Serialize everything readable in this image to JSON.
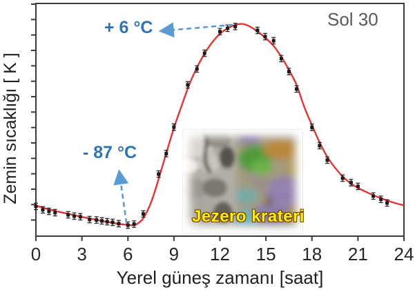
{
  "inset": {
    "caption": "Jezero krateri"
  },
  "colors": {
    "curve": "#e8322e",
    "marker": "#1a1a1a",
    "annotation_text": "#2e74b5",
    "arrow": "#5b9bd5",
    "title": "#595959",
    "axis": "#3a3a3a",
    "tick_label": "#262626",
    "inset_caption": "#ffee00"
  },
  "chart_data": {
    "type": "line",
    "title": "Sol 30",
    "xlabel": "Yerel güneş zamanı [saat]",
    "ylabel": "Zemin sıcaklığı  [ K ]",
    "x_unit": "hours, local solar time",
    "y_unit": "K",
    "xlim": [
      0,
      24
    ],
    "xticks": [
      0,
      3,
      6,
      9,
      12,
      15,
      18,
      21,
      24
    ],
    "ylim": [
      182,
      290
    ],
    "yticks_unlabeled_count": 15,
    "grid": false,
    "legend": "none",
    "annotations": {
      "max": {
        "label": "+ 6 °C",
        "value_c": 6,
        "value_k": 279,
        "at_hour": 13.4,
        "arrow": {
          "from": [
            12.83,
            280.1
          ],
          "to": [
            8.15,
            277.2
          ]
        }
      },
      "min": {
        "label": "- 87 °C",
        "value_c": -87,
        "value_k": 186,
        "at_hour": 5.9,
        "arrow": {
          "from": [
            5.91,
            188.0
          ],
          "to": [
            5.43,
            212.0
          ]
        }
      }
    },
    "series": [
      {
        "name": "measurements",
        "style": "square markers with error bars",
        "error_k": 1.5,
        "points": [
          [
            0.0,
            195.8
          ],
          [
            0.45,
            194.2
          ],
          [
            0.85,
            193.5
          ],
          [
            1.25,
            192.9
          ],
          [
            2.1,
            191.9
          ],
          [
            2.5,
            191.3
          ],
          [
            2.9,
            191.0
          ],
          [
            3.5,
            189.7
          ],
          [
            3.95,
            189.5
          ],
          [
            4.3,
            189.1
          ],
          [
            4.65,
            188.7
          ],
          [
            5.0,
            188.4
          ],
          [
            5.4,
            187.8
          ],
          [
            6.0,
            187.1
          ],
          [
            6.4,
            187.6
          ],
          [
            7.0,
            192.3
          ],
          [
            8.0,
            210.8
          ],
          [
            8.5,
            220.3
          ],
          [
            9.0,
            232.6
          ],
          [
            9.9,
            252.2
          ],
          [
            10.5,
            259.6
          ],
          [
            11.0,
            266.9
          ],
          [
            12.0,
            276.9
          ],
          [
            12.5,
            278.5
          ],
          [
            13.0,
            279.3
          ],
          [
            14.45,
            277.5
          ],
          [
            14.95,
            274.6
          ],
          [
            15.5,
            272.7
          ],
          [
            16.0,
            264.4
          ],
          [
            16.5,
            258.4
          ],
          [
            17.0,
            250.3
          ],
          [
            18.0,
            232.5
          ],
          [
            18.5,
            224.0
          ],
          [
            19.0,
            217.3
          ],
          [
            20.0,
            208.9
          ],
          [
            20.55,
            206.8
          ],
          [
            21.0,
            205.1
          ],
          [
            22.0,
            200.6
          ],
          [
            22.5,
            199.1
          ],
          [
            22.9,
            197.4
          ]
        ]
      },
      {
        "name": "model-fit",
        "style": "smooth red line",
        "points": [
          [
            0,
            196.2
          ],
          [
            0.5,
            195.1
          ],
          [
            1,
            194.1
          ],
          [
            1.5,
            193.3
          ],
          [
            2,
            192.5
          ],
          [
            2.5,
            191.7
          ],
          [
            3,
            190.9
          ],
          [
            3.5,
            190.2
          ],
          [
            4,
            189.5
          ],
          [
            4.5,
            188.8
          ],
          [
            5,
            188.2
          ],
          [
            5.5,
            187.6
          ],
          [
            6,
            187.2
          ],
          [
            6.3,
            187.1
          ],
          [
            6.6,
            187.7
          ],
          [
            7,
            190.3
          ],
          [
            7.5,
            197.5
          ],
          [
            8,
            208.5
          ],
          [
            8.5,
            220.5
          ],
          [
            9,
            232.2
          ],
          [
            9.5,
            242.5
          ],
          [
            10,
            252.3
          ],
          [
            10.5,
            260.2
          ],
          [
            11,
            266.8
          ],
          [
            11.5,
            272.0
          ],
          [
            12,
            275.9
          ],
          [
            12.5,
            278.5
          ],
          [
            13,
            280.0
          ],
          [
            13.4,
            280.5
          ],
          [
            13.8,
            279.8
          ],
          [
            14.2,
            278.2
          ],
          [
            14.6,
            276.2
          ],
          [
            15,
            273.8
          ],
          [
            15.5,
            270.3
          ],
          [
            16,
            265.3
          ],
          [
            16.5,
            259.2
          ],
          [
            17,
            252.2
          ],
          [
            17.5,
            242.0
          ],
          [
            18,
            233.5
          ],
          [
            18.5,
            225.5
          ],
          [
            19,
            218.8
          ],
          [
            19.5,
            213.8
          ],
          [
            20,
            209.7
          ],
          [
            20.5,
            206.6
          ],
          [
            21,
            204.4
          ],
          [
            21.5,
            202.6
          ],
          [
            22,
            201.0
          ],
          [
            22.5,
            199.6
          ],
          [
            23,
            198.3
          ],
          [
            23.5,
            197.2
          ],
          [
            24,
            196.3
          ]
        ]
      }
    ]
  }
}
